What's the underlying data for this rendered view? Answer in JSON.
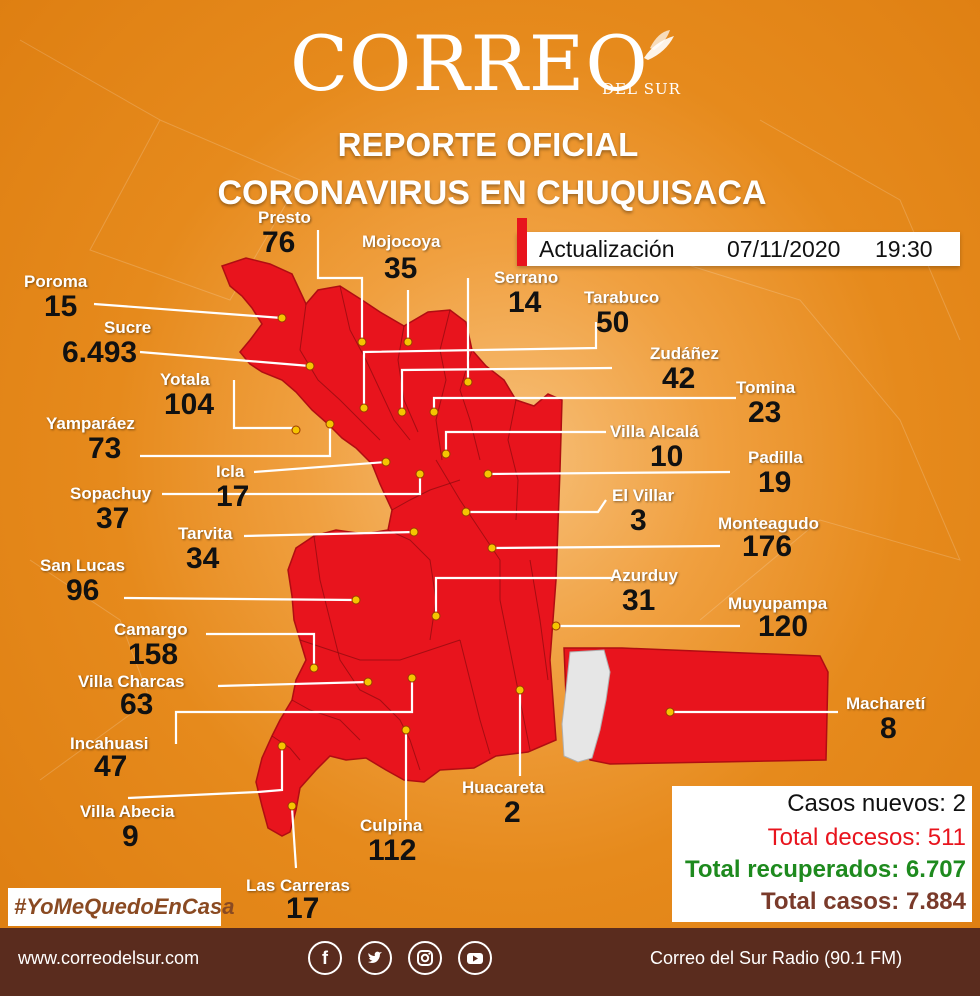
{
  "header": {
    "brand": "CORREO",
    "brand_sub": "DEL SUR",
    "title_line1": "REPORTE OFICIAL",
    "title_line2": "CORONAVIRUS EN CHUQUISACA"
  },
  "update": {
    "label": "Actualización",
    "date": "07/11/2020",
    "time": "19:30"
  },
  "municipalities": [
    {
      "name": "Presto",
      "value": "76"
    },
    {
      "name": "Mojocoya",
      "value": "35"
    },
    {
      "name": "Poroma",
      "value": "15"
    },
    {
      "name": "Serrano",
      "value": "14"
    },
    {
      "name": "Tarabuco",
      "value": "50"
    },
    {
      "name": "Sucre",
      "value": "6.493"
    },
    {
      "name": "Zudáñez",
      "value": "42"
    },
    {
      "name": "Yotala",
      "value": "104"
    },
    {
      "name": "Tomina",
      "value": "23"
    },
    {
      "name": "Yamparáez",
      "value": "73"
    },
    {
      "name": "Villa Alcalá",
      "value": "10"
    },
    {
      "name": "Icla",
      "value": "17"
    },
    {
      "name": "Padilla",
      "value": "19"
    },
    {
      "name": "Sopachuy",
      "value": "37"
    },
    {
      "name": "El Villar",
      "value": "3"
    },
    {
      "name": "Tarvita",
      "value": "34"
    },
    {
      "name": "Monteagudo",
      "value": "176"
    },
    {
      "name": "San Lucas",
      "value": "96"
    },
    {
      "name": "Azurduy",
      "value": "31"
    },
    {
      "name": "Muyupampa",
      "value": "120"
    },
    {
      "name": "Camargo",
      "value": "158"
    },
    {
      "name": "Villa Charcas",
      "value": "63"
    },
    {
      "name": "Macharetí",
      "value": "8"
    },
    {
      "name": "Incahuasi",
      "value": "47"
    },
    {
      "name": "Huacareta",
      "value": "2"
    },
    {
      "name": "Villa Abecia",
      "value": "9"
    },
    {
      "name": "Culpina",
      "value": "112"
    },
    {
      "name": "Las Carreras",
      "value": "17"
    }
  ],
  "stats": {
    "new_cases": "Casos nuevos: 2",
    "deaths": "Total decesos: 511",
    "recovered": "Total recuperados: 6.707",
    "total": "Total casos: 7.884"
  },
  "hashtag": "#YoMeQuedoEnCasa",
  "footer": {
    "website": "www.correodelsur.com",
    "radio": "Correo del Sur Radio (90.1 FM)",
    "social": [
      "facebook-icon",
      "twitter-icon",
      "instagram-icon",
      "youtube-icon"
    ]
  },
  "colors": {
    "background": "#e68a1c",
    "map_fill": "#e8141d",
    "label_text": "#ffffff",
    "value_text": "#111111",
    "deaths": "#e8141d",
    "recovered": "#1e8a1e",
    "total": "#7a3a2a",
    "footer": "#5a2c1e",
    "marker": "#f5c400"
  }
}
